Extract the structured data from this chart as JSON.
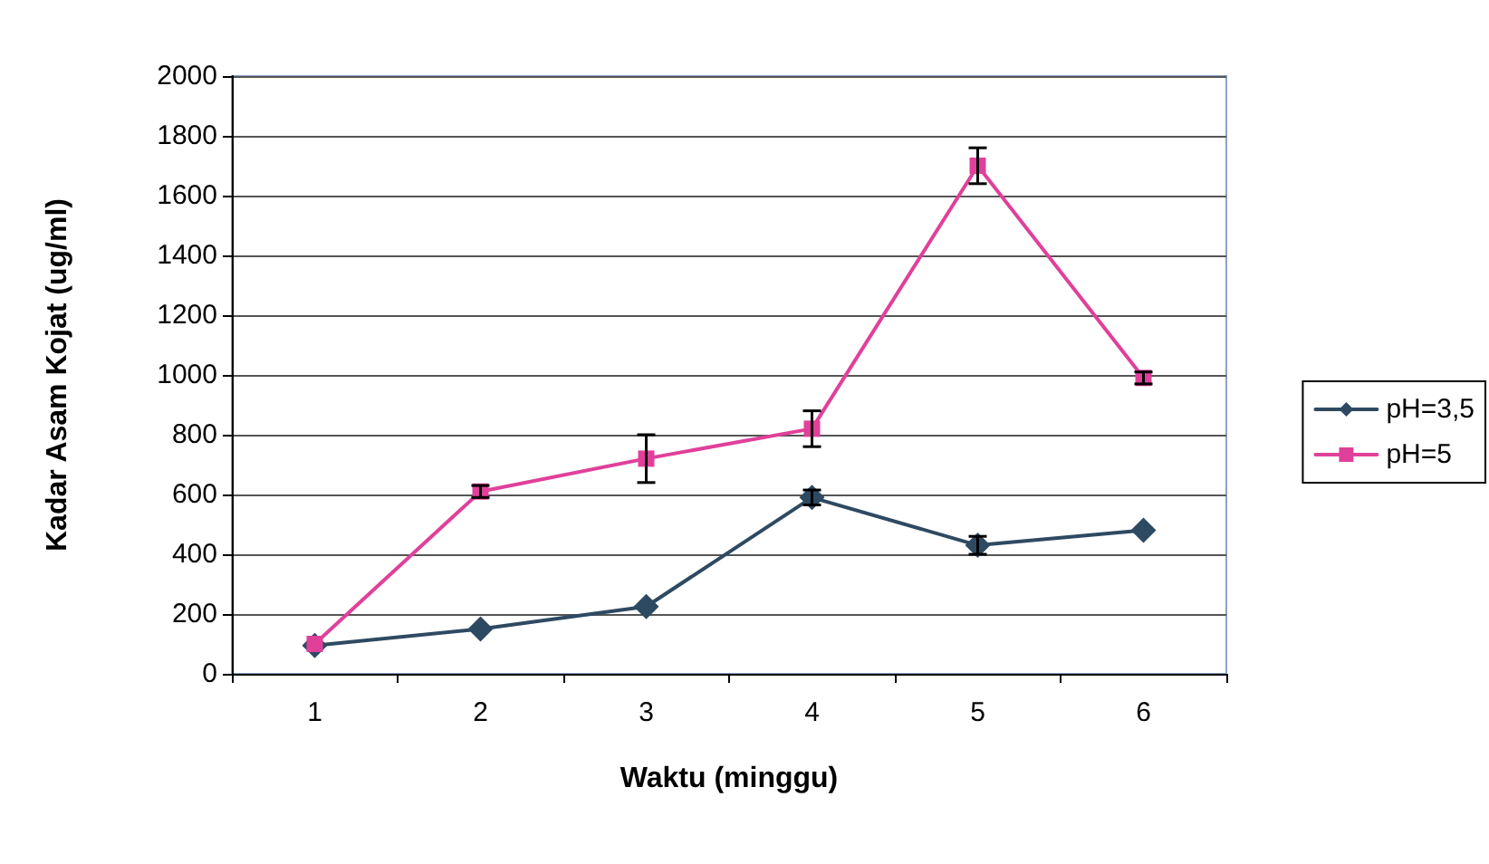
{
  "chart_data": {
    "type": "line",
    "xlabel": "Waktu (minggu)",
    "ylabel": "Kadar Asam Kojat (ug/ml)",
    "categories": [
      "1",
      "2",
      "3",
      "4",
      "5",
      "6"
    ],
    "series": [
      {
        "name": "pH=3,5",
        "color": "#2e4a62",
        "marker": "diamond",
        "values": [
          95,
          150,
          225,
          590,
          430,
          480
        ],
        "errors": [
          null,
          null,
          null,
          25,
          30,
          null
        ]
      },
      {
        "name": "pH=5",
        "color": "#e0409a",
        "marker": "square",
        "values": [
          100,
          610,
          720,
          820,
          1700,
          990
        ],
        "errors": [
          null,
          20,
          80,
          60,
          60,
          20
        ]
      }
    ],
    "ylim": [
      0,
      2000
    ],
    "yticks": [
      0,
      200,
      400,
      600,
      800,
      1000,
      1200,
      1400,
      1600,
      1800,
      2000
    ],
    "grid": "y",
    "legend": "right"
  }
}
